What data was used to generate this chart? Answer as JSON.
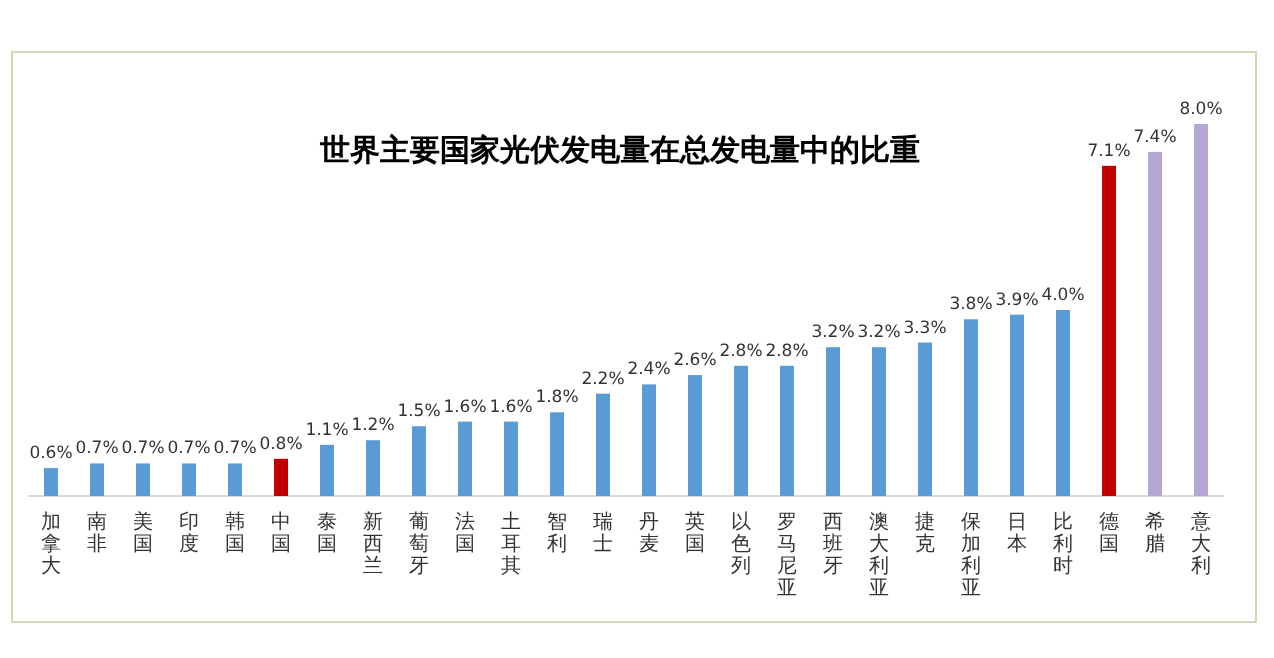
{
  "chart_data": {
    "type": "bar",
    "title": "世界主要国家光伏发电量在总发电量中的比重",
    "categories": [
      "加拿大",
      "南非",
      "美国",
      "印度",
      "韩国",
      "中国",
      "泰国",
      "新西兰",
      "葡萄牙",
      "法国",
      "土耳其",
      "智利",
      "瑞士",
      "丹麦",
      "英国",
      "以色列",
      "罗马尼亚",
      "西班牙",
      "澳大利亚",
      "捷克",
      "保加利亚",
      "日本",
      "比利时",
      "德国",
      "希腊",
      "意大利"
    ],
    "values": [
      0.6,
      0.7,
      0.7,
      0.7,
      0.7,
      0.8,
      1.1,
      1.2,
      1.5,
      1.6,
      1.6,
      1.8,
      2.2,
      2.4,
      2.6,
      2.8,
      2.8,
      3.2,
      3.2,
      3.3,
      3.8,
      3.9,
      4.0,
      7.1,
      7.4,
      8.0
    ],
    "value_labels": [
      "0.6%",
      "0.7%",
      "0.7%",
      "0.7%",
      "0.7%",
      "0.8%",
      "1.1%",
      "1.2%",
      "1.5%",
      "1.6%",
      "1.6%",
      "1.8%",
      "2.2%",
      "2.4%",
      "2.6%",
      "2.8%",
      "2.8%",
      "3.2%",
      "3.2%",
      "3.3%",
      "3.8%",
      "3.9%",
      "4.0%",
      "7.1%",
      "7.4%",
      "8.0%"
    ],
    "colors": [
      "#5b9bd5",
      "#5b9bd5",
      "#5b9bd5",
      "#5b9bd5",
      "#5b9bd5",
      "#c00000",
      "#5b9bd5",
      "#5b9bd5",
      "#5b9bd5",
      "#5b9bd5",
      "#5b9bd5",
      "#5b9bd5",
      "#5b9bd5",
      "#5b9bd5",
      "#5b9bd5",
      "#5b9bd5",
      "#5b9bd5",
      "#5b9bd5",
      "#5b9bd5",
      "#5b9bd5",
      "#5b9bd5",
      "#5b9bd5",
      "#5b9bd5",
      "#c00000",
      "#b4a7d6",
      "#b4a7d6"
    ]
  }
}
